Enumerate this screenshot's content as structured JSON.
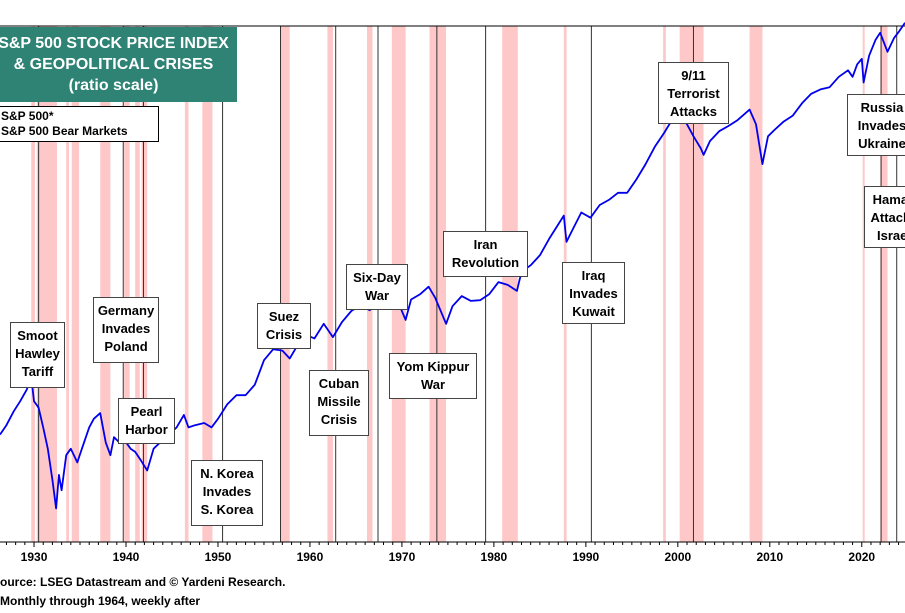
{
  "chart_data": {
    "type": "line",
    "title_lines": [
      "S&P 500 STOCK PRICE INDEX",
      "& GEOPOLITICAL CRISES",
      "(ratio scale)"
    ],
    "legend": [
      "S&P 500*",
      "S&P 500 Bear Markets"
    ],
    "xlim": [
      1926.3,
      2024.7
    ],
    "x_ticks": [
      1930,
      1940,
      1950,
      1960,
      1970,
      1980,
      1990,
      2000,
      2010,
      2020
    ],
    "ylim_log10": [
      0.45,
      3.72
    ],
    "y_scale": "log",
    "series": [
      {
        "color": "#0000ee",
        "points": [
          [
            1926.3,
            13.5
          ],
          [
            1927.0,
            15.5
          ],
          [
            1927.8,
            19
          ],
          [
            1928.5,
            22
          ],
          [
            1929.2,
            26
          ],
          [
            1929.7,
            31
          ],
          [
            1930.0,
            22
          ],
          [
            1930.5,
            20
          ],
          [
            1931.0,
            15
          ],
          [
            1931.5,
            11
          ],
          [
            1932.0,
            7
          ],
          [
            1932.4,
            4.6
          ],
          [
            1932.7,
            7.5
          ],
          [
            1933.0,
            6
          ],
          [
            1933.5,
            10
          ],
          [
            1934.0,
            11
          ],
          [
            1934.7,
            9
          ],
          [
            1935.2,
            11
          ],
          [
            1936.0,
            15
          ],
          [
            1936.5,
            17
          ],
          [
            1937.2,
            18.5
          ],
          [
            1937.8,
            12
          ],
          [
            1938.3,
            10
          ],
          [
            1938.7,
            13
          ],
          [
            1939.3,
            12
          ],
          [
            1939.8,
            12.5
          ],
          [
            1940.5,
            11
          ],
          [
            1941.0,
            10.5
          ],
          [
            1941.5,
            9.5
          ],
          [
            1942.3,
            8
          ],
          [
            1943.0,
            11
          ],
          [
            1944.0,
            12.5
          ],
          [
            1945.5,
            15
          ],
          [
            1946.3,
            18
          ],
          [
            1946.8,
            15
          ],
          [
            1947.5,
            15.5
          ],
          [
            1948.5,
            16
          ],
          [
            1949.3,
            15
          ],
          [
            1950.0,
            17
          ],
          [
            1951.0,
            21
          ],
          [
            1952.0,
            24
          ],
          [
            1953.0,
            24
          ],
          [
            1954.0,
            28
          ],
          [
            1955.0,
            40
          ],
          [
            1956.0,
            47
          ],
          [
            1957.0,
            46
          ],
          [
            1957.8,
            41
          ],
          [
            1958.5,
            48
          ],
          [
            1959.5,
            58
          ],
          [
            1960.5,
            55
          ],
          [
            1961.5,
            68
          ],
          [
            1962.5,
            56
          ],
          [
            1963.5,
            70
          ],
          [
            1964.5,
            82
          ],
          [
            1965.5,
            89
          ],
          [
            1966.5,
            83
          ],
          [
            1967.5,
            94
          ],
          [
            1968.5,
            100
          ],
          [
            1969.5,
            96
          ],
          [
            1970.4,
            72
          ],
          [
            1971.0,
            97
          ],
          [
            1972.0,
            105
          ],
          [
            1972.9,
            117
          ],
          [
            1973.6,
            100
          ],
          [
            1974.8,
            68
          ],
          [
            1975.5,
            88
          ],
          [
            1976.5,
            102
          ],
          [
            1977.5,
            95
          ],
          [
            1978.5,
            96
          ],
          [
            1979.5,
            105
          ],
          [
            1980.5,
            125
          ],
          [
            1981.5,
            120
          ],
          [
            1982.5,
            110
          ],
          [
            1983.0,
            145
          ],
          [
            1984.0,
            160
          ],
          [
            1985.0,
            185
          ],
          [
            1986.0,
            235
          ],
          [
            1987.6,
            330
          ],
          [
            1987.9,
            225
          ],
          [
            1988.5,
            265
          ],
          [
            1989.5,
            345
          ],
          [
            1990.5,
            320
          ],
          [
            1991.5,
            385
          ],
          [
            1992.5,
            415
          ],
          [
            1993.5,
            460
          ],
          [
            1994.5,
            460
          ],
          [
            1995.5,
            560
          ],
          [
            1996.5,
            700
          ],
          [
            1997.5,
            900
          ],
          [
            1998.5,
            1100
          ],
          [
            1999.5,
            1370
          ],
          [
            2000.2,
            1520
          ],
          [
            2001.0,
            1250
          ],
          [
            2001.7,
            1050
          ],
          [
            2002.5,
            880
          ],
          [
            2002.8,
            800
          ],
          [
            2003.5,
            980
          ],
          [
            2004.5,
            1130
          ],
          [
            2005.5,
            1220
          ],
          [
            2006.5,
            1330
          ],
          [
            2007.8,
            1550
          ],
          [
            2008.5,
            1250
          ],
          [
            2009.2,
            700
          ],
          [
            2009.8,
            1050
          ],
          [
            2010.5,
            1150
          ],
          [
            2011.5,
            1300
          ],
          [
            2012.5,
            1420
          ],
          [
            2013.5,
            1700
          ],
          [
            2014.5,
            1950
          ],
          [
            2015.5,
            2080
          ],
          [
            2016.5,
            2150
          ],
          [
            2017.5,
            2500
          ],
          [
            2018.5,
            2750
          ],
          [
            2019.0,
            2500
          ],
          [
            2019.5,
            3000
          ],
          [
            2020.0,
            3250
          ],
          [
            2020.2,
            2300
          ],
          [
            2020.8,
            3400
          ],
          [
            2021.5,
            4300
          ],
          [
            2022.0,
            4750
          ],
          [
            2022.8,
            3600
          ],
          [
            2023.5,
            4400
          ],
          [
            2024.0,
            4800
          ],
          [
            2024.7,
            5500
          ]
        ]
      }
    ],
    "bear_markets": [
      [
        1929.7,
        1930.1
      ],
      [
        1930.3,
        1932.5
      ],
      [
        1933.5,
        1933.8
      ],
      [
        1934.1,
        1934.9
      ],
      [
        1937.2,
        1938.3
      ],
      [
        1939.8,
        1940.4
      ],
      [
        1941.0,
        1941.5
      ],
      [
        1941.7,
        1942.3
      ],
      [
        1946.4,
        1946.8
      ],
      [
        1948.3,
        1949.4
      ],
      [
        1956.8,
        1957.8
      ],
      [
        1961.9,
        1962.5
      ],
      [
        1966.2,
        1966.8
      ],
      [
        1968.9,
        1970.4
      ],
      [
        1973.0,
        1974.8
      ],
      [
        1980.9,
        1982.6
      ],
      [
        1987.6,
        1987.9
      ],
      [
        1998.4,
        1998.7
      ],
      [
        2000.2,
        2002.8
      ],
      [
        2007.8,
        2009.2
      ],
      [
        2020.1,
        2020.3
      ],
      [
        2022.0,
        2022.8
      ]
    ],
    "event_years": [
      1930.5,
      1939.7,
      1941.9,
      1950.5,
      1956.8,
      1962.8,
      1967.4,
      1973.8,
      1979.1,
      1990.6,
      2001.7,
      2022.1,
      2023.8
    ],
    "events": [
      {
        "label": [
          "Smoot",
          "Hawley",
          "Tariff"
        ]
      },
      {
        "label": [
          "Germany",
          "Invades",
          "Poland"
        ]
      },
      {
        "label": [
          "Pearl",
          "Harbor"
        ]
      },
      {
        "label": [
          "N. Korea",
          "Invades",
          "S. Korea"
        ]
      },
      {
        "label": [
          "Suez",
          "Crisis"
        ]
      },
      {
        "label": [
          "Cuban",
          "Missile",
          "Crisis"
        ]
      },
      {
        "label": [
          "Six-Day",
          "War"
        ]
      },
      {
        "label": [
          "Yom Kippur",
          "War"
        ]
      },
      {
        "label": [
          "Iran",
          "Revolution"
        ]
      },
      {
        "label": [
          "Iraq",
          "Invades",
          "Kuwait"
        ]
      },
      {
        "label": [
          "9/11",
          "Terrorist",
          "Attacks"
        ]
      },
      {
        "label": [
          "Russia",
          "Invades",
          "Ukraine"
        ]
      },
      {
        "label": [
          "Hamas",
          "Attacks",
          "Israel"
        ]
      }
    ],
    "colors": {
      "line": "#0000ee",
      "bear_band": "#ffc8c8",
      "event_line": "#333333",
      "title_bg": "#2e8374"
    }
  },
  "footnotes": [
    "Source: LSEG Datastream and © Yardeni Research.",
    "* Monthly through 1964, weekly after"
  ]
}
